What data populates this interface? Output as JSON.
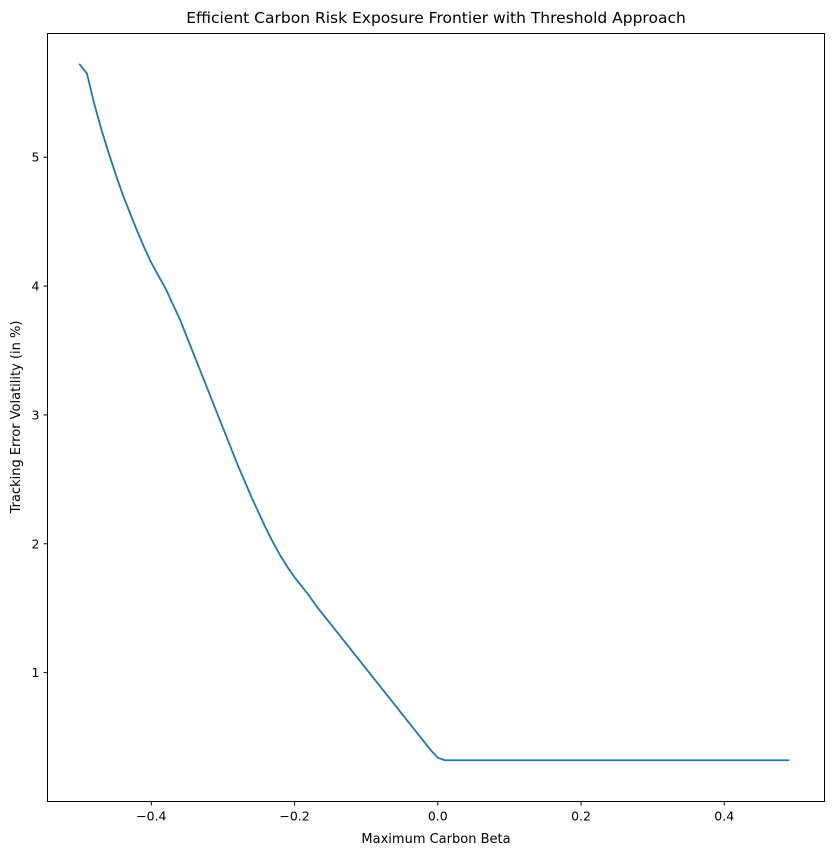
{
  "chart_data": {
    "type": "line",
    "title": "Efficient Carbon Risk Exposure Frontier with Threshold Approach",
    "xlabel": "Maximum Carbon Beta",
    "ylabel": "Tracking Error Volatility (in %)",
    "xlim": [
      -0.545,
      0.54
    ],
    "ylim": [
      0.0,
      5.96
    ],
    "xticks": [
      -0.4,
      -0.2,
      0.0,
      0.2,
      0.4
    ],
    "xtick_labels": [
      "−0.4",
      "−0.2",
      "0.0",
      "0.2",
      "0.4"
    ],
    "yticks": [
      1,
      2,
      3,
      4,
      5
    ],
    "ytick_labels": [
      "1",
      "2",
      "3",
      "4",
      "5"
    ],
    "grid": false,
    "series": [
      {
        "color": "#1f77b4",
        "x": [
          -0.5,
          -0.49,
          -0.48,
          -0.47,
          -0.46,
          -0.45,
          -0.44,
          -0.43,
          -0.42,
          -0.41,
          -0.4,
          -0.39,
          -0.38,
          -0.37,
          -0.36,
          -0.35,
          -0.34,
          -0.33,
          -0.32,
          -0.31,
          -0.3,
          -0.29,
          -0.28,
          -0.27,
          -0.26,
          -0.25,
          -0.24,
          -0.23,
          -0.22,
          -0.21,
          -0.2,
          -0.19,
          -0.18,
          -0.17,
          -0.16,
          -0.15,
          -0.14,
          -0.13,
          -0.12,
          -0.11,
          -0.1,
          -0.09,
          -0.08,
          -0.07,
          -0.06,
          -0.05,
          -0.04,
          -0.03,
          -0.02,
          -0.01,
          0.0,
          0.01,
          0.02,
          0.03,
          0.04,
          0.05,
          0.06,
          0.07,
          0.08,
          0.09,
          0.1,
          0.11,
          0.12,
          0.13,
          0.14,
          0.15,
          0.16,
          0.2,
          0.3,
          0.4,
          0.49
        ],
        "values": [
          5.72,
          5.65,
          5.42,
          5.22,
          5.04,
          4.87,
          4.71,
          4.57,
          4.43,
          4.3,
          4.18,
          4.08,
          3.98,
          3.86,
          3.74,
          3.6,
          3.46,
          3.32,
          3.18,
          3.04,
          2.9,
          2.76,
          2.62,
          2.49,
          2.36,
          2.24,
          2.12,
          2.01,
          1.91,
          1.82,
          1.74,
          1.67,
          1.6,
          1.52,
          1.45,
          1.38,
          1.31,
          1.24,
          1.17,
          1.1,
          1.03,
          0.96,
          0.89,
          0.82,
          0.75,
          0.68,
          0.61,
          0.54,
          0.47,
          0.4,
          0.34,
          0.32,
          0.32,
          0.32,
          0.32,
          0.32,
          0.32,
          0.32,
          0.32,
          0.32,
          0.32,
          0.32,
          0.32,
          0.32,
          0.32,
          0.32,
          0.32,
          0.32,
          0.32,
          0.32,
          0.32
        ]
      }
    ]
  }
}
